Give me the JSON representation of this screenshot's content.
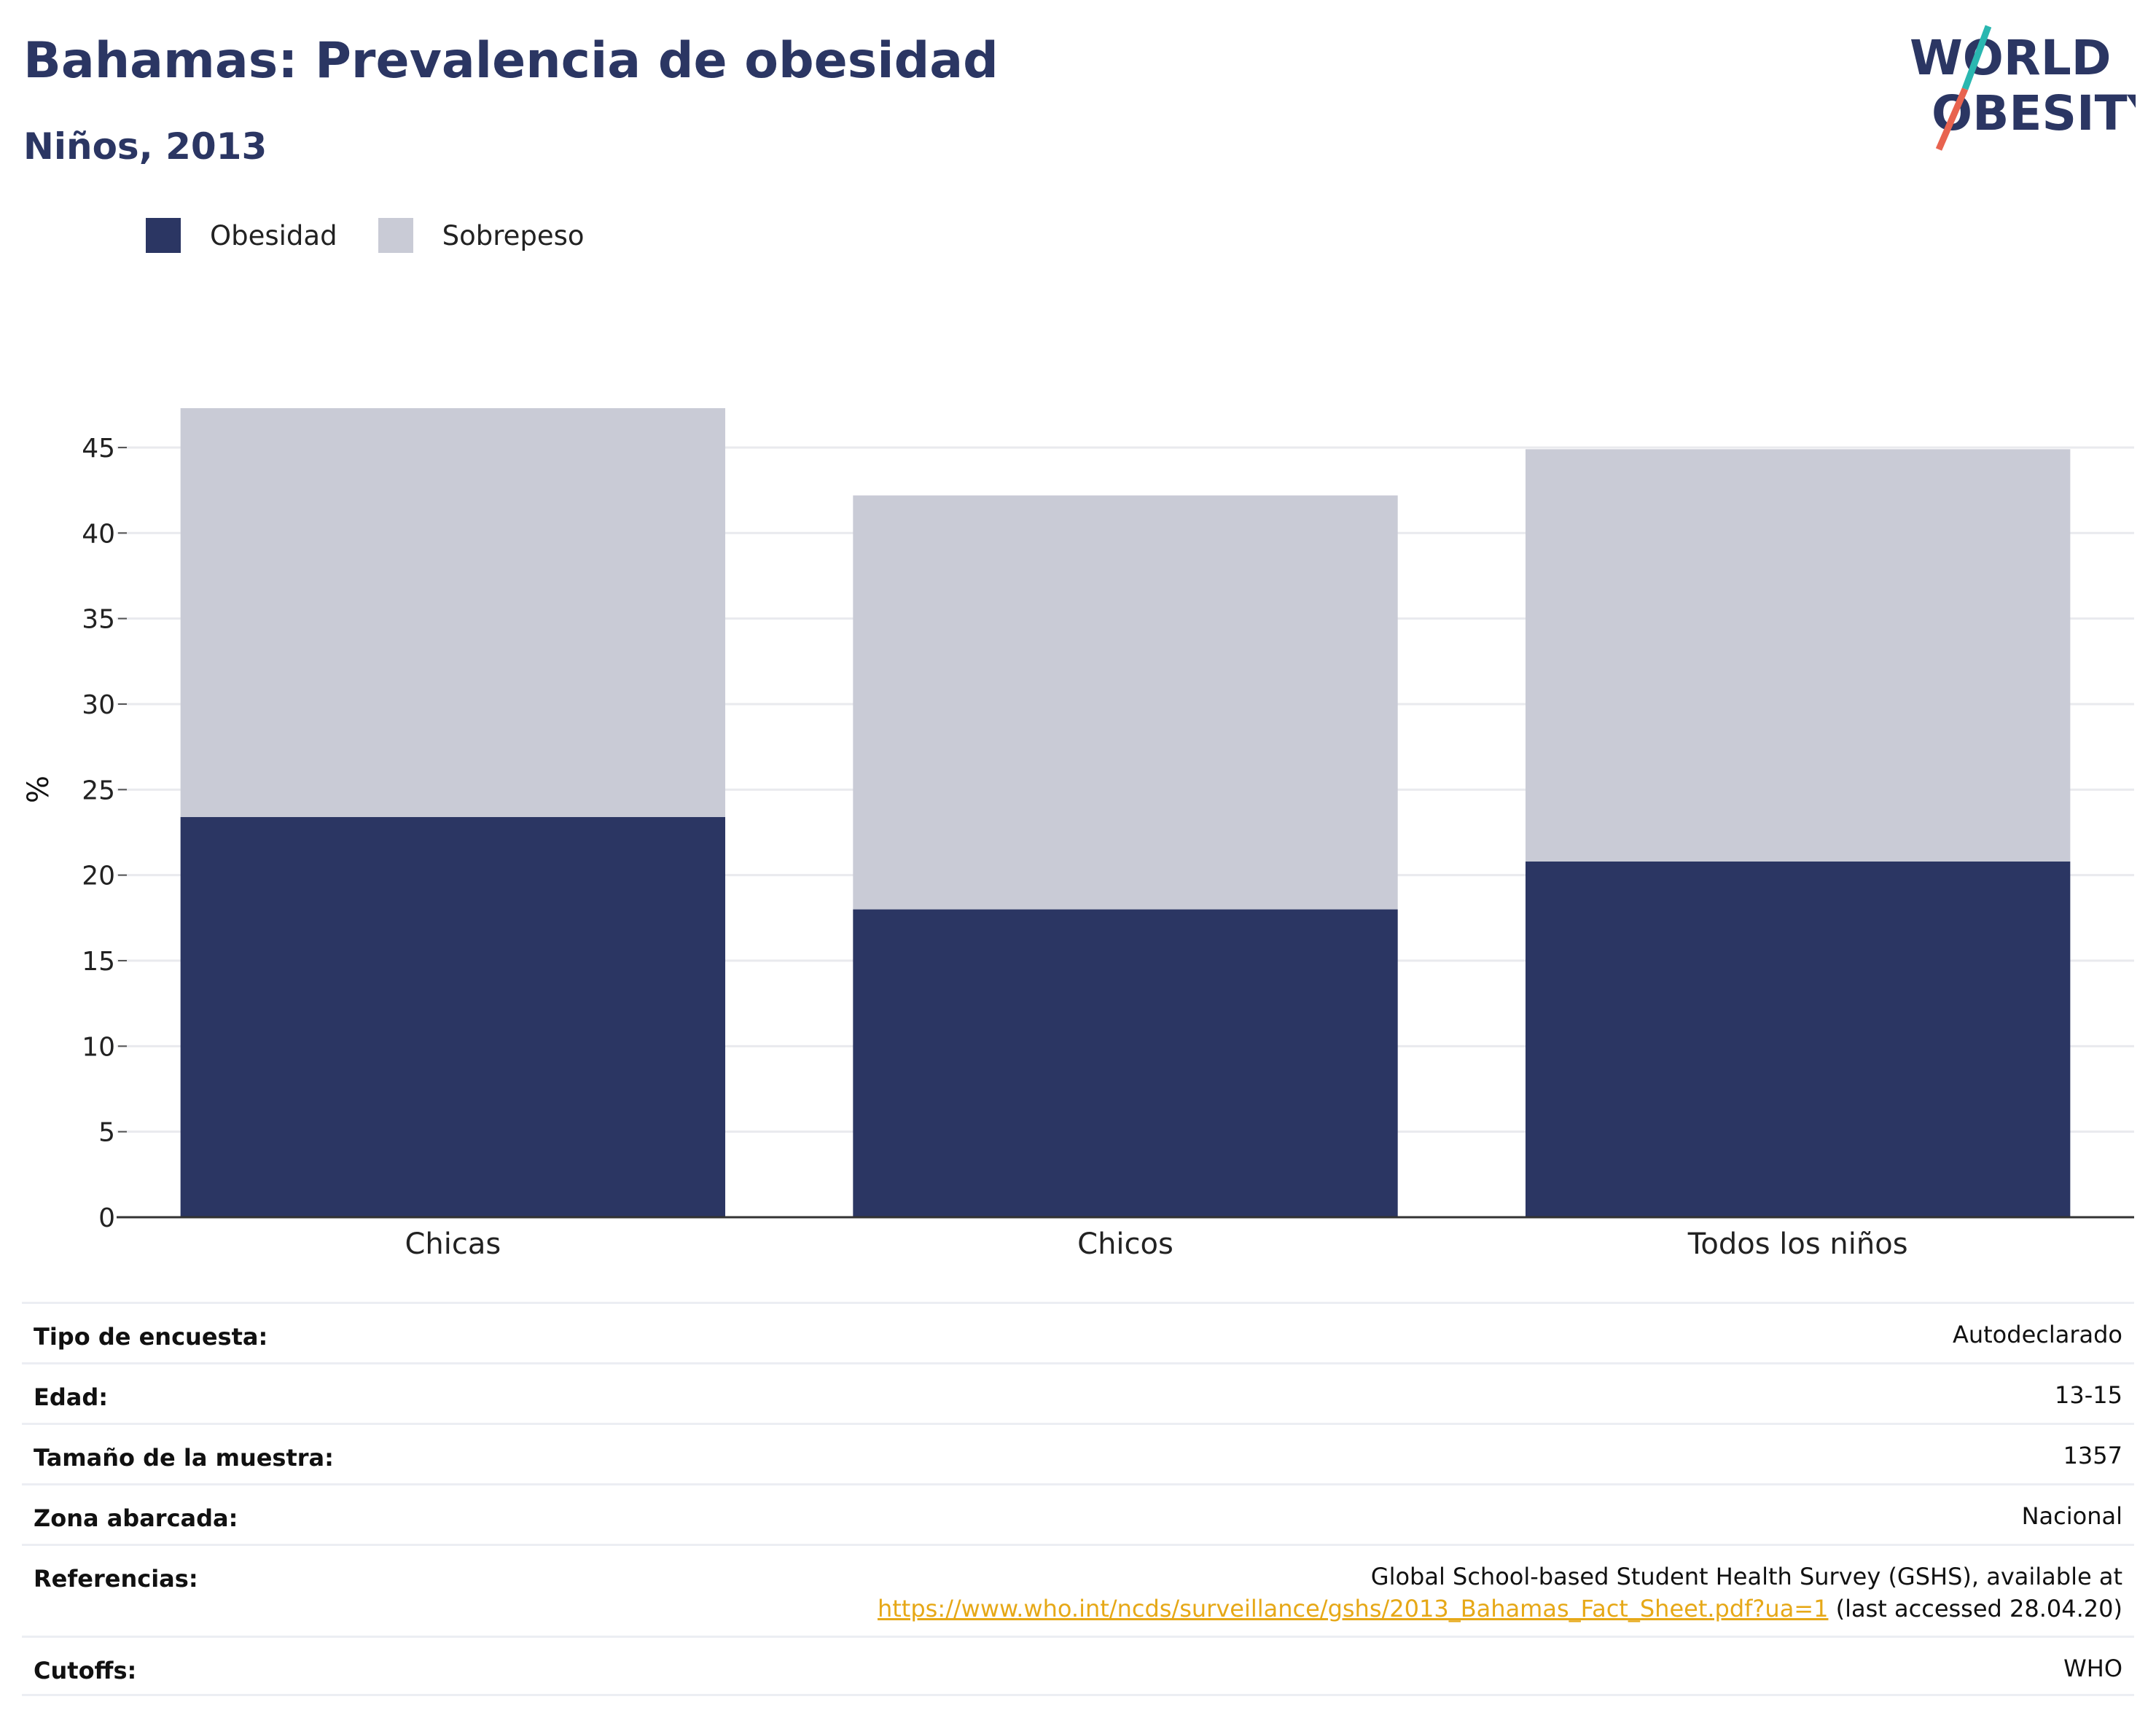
{
  "header": {
    "title": "Bahamas: Prevalencia de obesidad",
    "subtitle": "Niños, 2013"
  },
  "logo": {
    "line1": "WORLD",
    "line2": "OBESITY",
    "icon": "world-obesity-logo"
  },
  "colors": {
    "obesidad": "#2b3663",
    "sobrepeso": "#c9cbd6",
    "text": "#2b3663",
    "link": "#e6a817"
  },
  "chart_data": {
    "type": "bar",
    "stacked": true,
    "categories": [
      "Chicas",
      "Chicos",
      "Todos los niños"
    ],
    "series": [
      {
        "name": "Obesidad",
        "values": [
          23.4,
          18.0,
          20.8
        ]
      },
      {
        "name": "Sobrepeso",
        "values": [
          23.9,
          24.2,
          24.1
        ]
      }
    ],
    "ylabel": "%",
    "xlabel": "",
    "ylim": [
      0,
      47.3
    ],
    "yticks": [
      0,
      5,
      10,
      15,
      20,
      25,
      30,
      35,
      40,
      45
    ],
    "grid": true,
    "legend_position": "top-left"
  },
  "info": [
    {
      "label": "Tipo de encuesta:",
      "value": "Autodeclarado"
    },
    {
      "label": "Edad:",
      "value": "13-15"
    },
    {
      "label": "Tamaño de la muestra:",
      "value": "1357"
    },
    {
      "label": "Zona abarcada:",
      "value": "Nacional"
    },
    {
      "label": "Referencias:",
      "value": "Global School-based Student Health Survey (GSHS), available at",
      "link": "https://www.who.int/ncds/surveillance/gshs/2013_Bahamas_Fact_Sheet.pdf?ua=1",
      "suffix": " (last accessed 28.04.20)"
    },
    {
      "label": "Cutoffs:",
      "value": "WHO"
    }
  ]
}
